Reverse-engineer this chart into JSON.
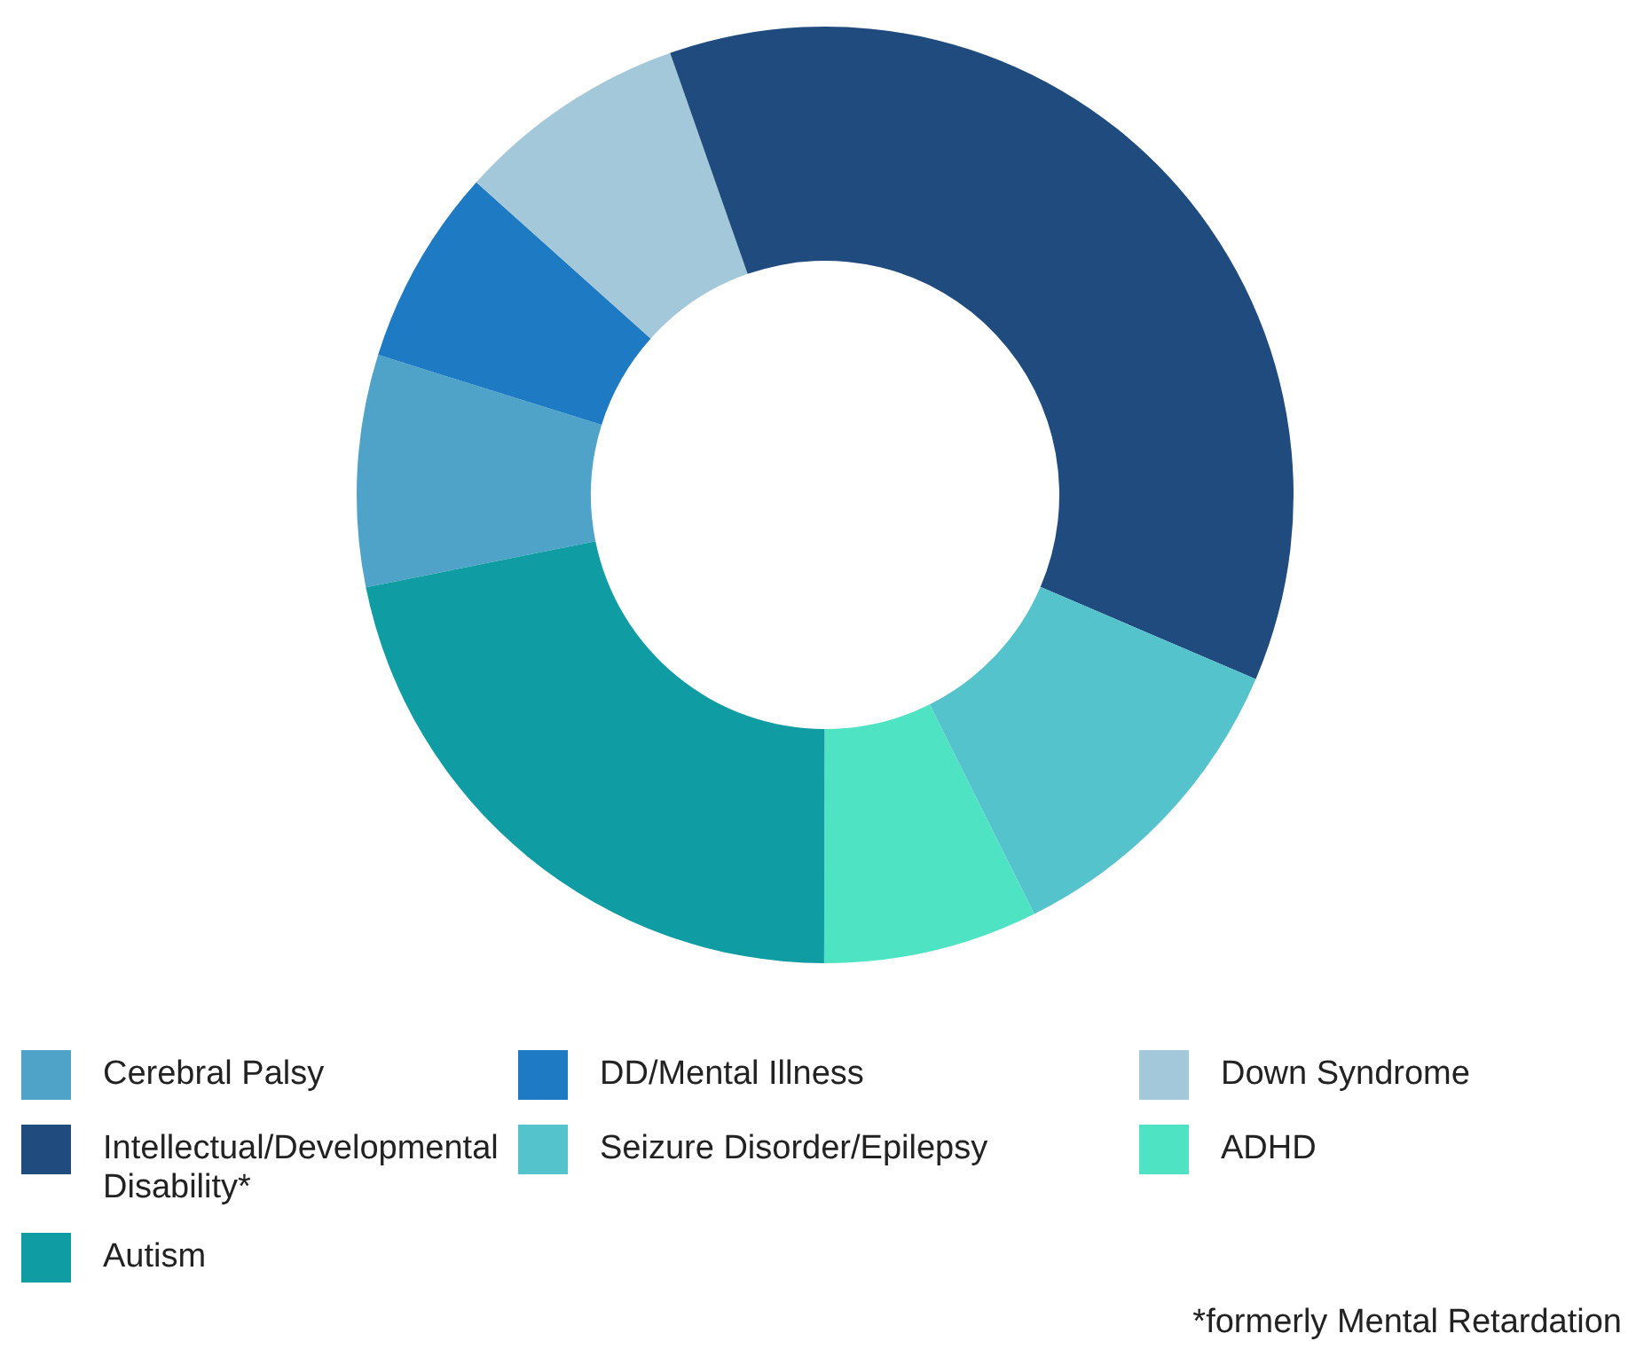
{
  "chart_data": {
    "type": "donut",
    "categories": [
      "Cerebral Palsy",
      "DD/Mental Illness",
      "Down Syndrome",
      "Intellectual/Developmental Disability*",
      "Seizure Disorder/Epilepsy",
      "ADHD",
      "Autism"
    ],
    "values": [
      8,
      6.8,
      8,
      36.8,
      11.2,
      7.4,
      21.8
    ],
    "colors": [
      "#4fa3c9",
      "#1e7bc3",
      "#a3c8da",
      "#1f4b7e",
      "#55c3cc",
      "#4ee3c2",
      "#0f9ca3"
    ],
    "legend": "bottom",
    "annotations": [
      "*formerly Mental Retardation"
    ]
  }
}
